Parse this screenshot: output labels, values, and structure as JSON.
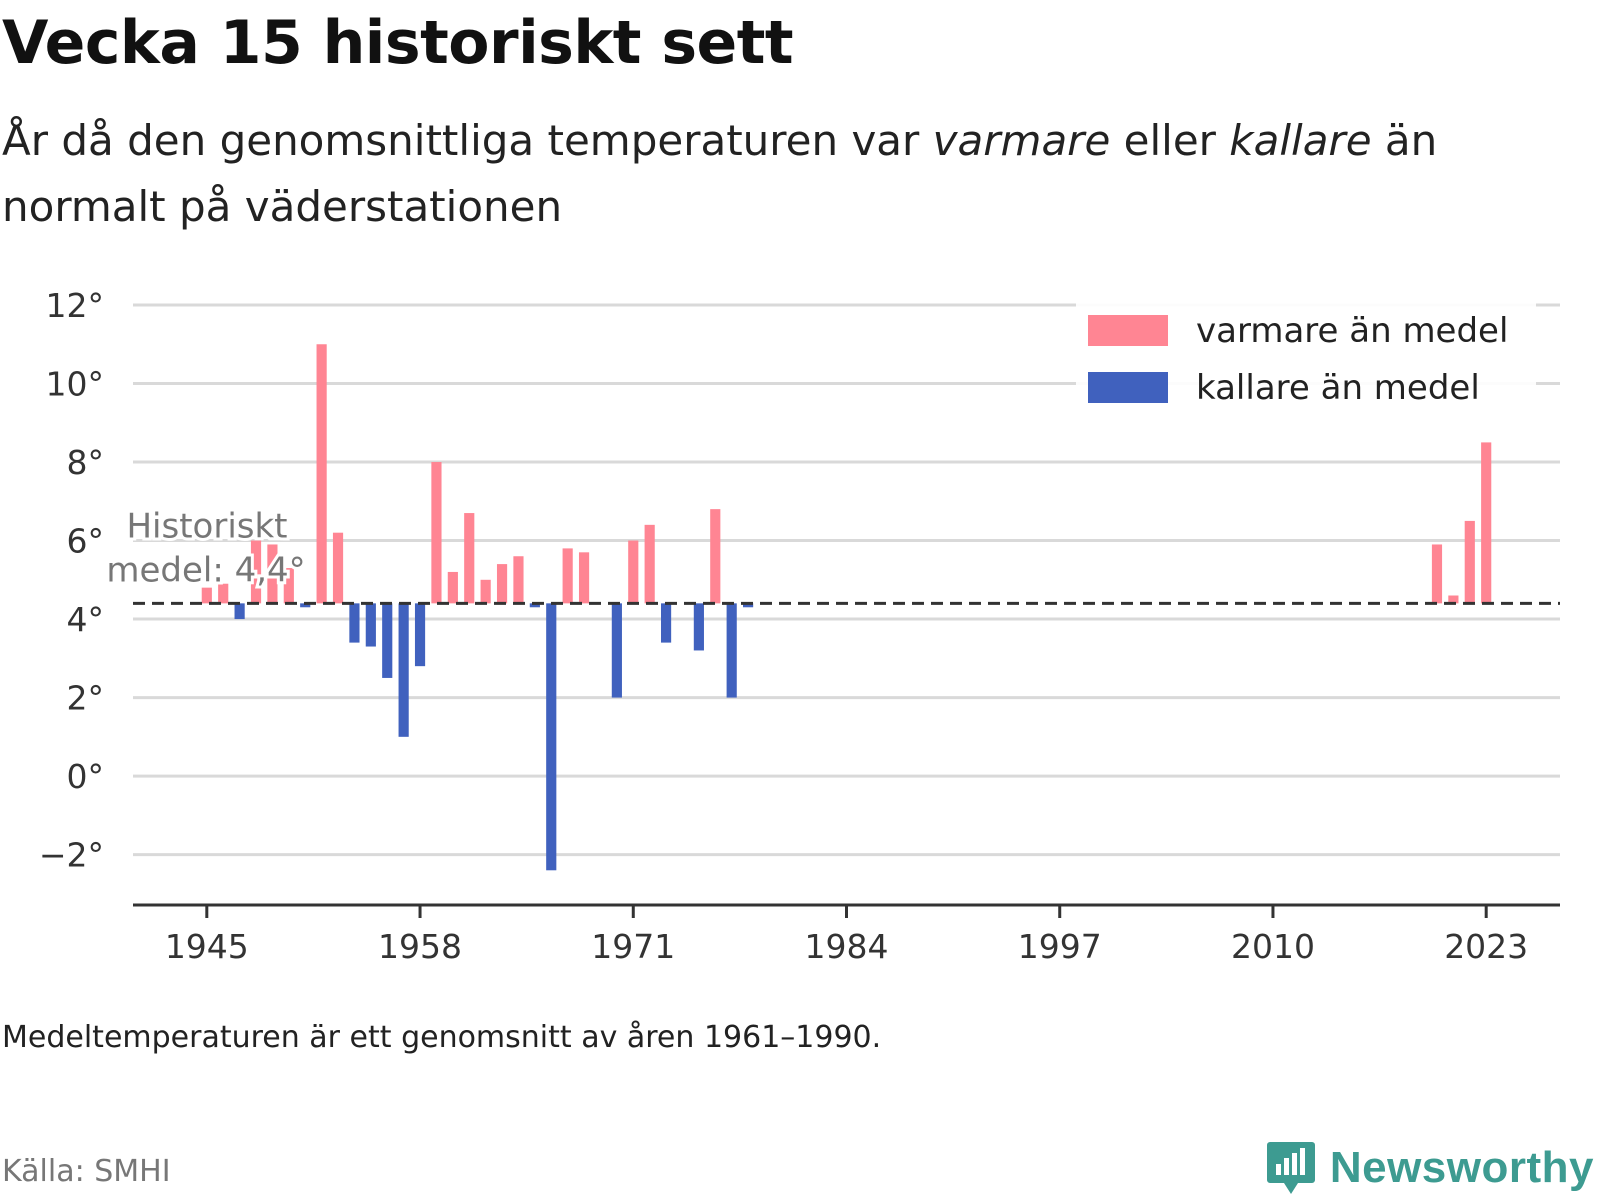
{
  "title": "Vecka 15 historiskt sett",
  "subtitle": {
    "part1": "År då den genomsnittliga temperaturen var ",
    "warm_word": "varmare",
    "part2": " eller ",
    "cold_word": "kallare",
    "part3": " än normalt på väderstationen"
  },
  "note": "Medeltemperaturen är ett genomsnitt av åren 1961–1990.",
  "source": "Källa: SMHI",
  "brand": {
    "name": "Newsworthy",
    "logo_icon": "newsworthy-logo-icon"
  },
  "colors": {
    "warm": "#ff8593",
    "cold": "#4061be",
    "brand": "#3d9b91",
    "grid": "#d9d9d9",
    "reference": "#333333"
  },
  "chart_data": {
    "type": "bar",
    "reference_value": 4.4,
    "reference_label_line1": "Historiskt",
    "reference_label_line2": "medel: 4,4°",
    "legend_placement": "top-right",
    "grid": true,
    "ylim": [
      -2.8,
      12
    ],
    "xlim": [
      1940.5,
      2027.5
    ],
    "y_ticks": [
      {
        "value": 12,
        "label": "12°"
      },
      {
        "value": 10,
        "label": "10°"
      },
      {
        "value": 8,
        "label": "8°"
      },
      {
        "value": 6,
        "label": "6°"
      },
      {
        "value": 4,
        "label": "4°"
      },
      {
        "value": 2,
        "label": "2°"
      },
      {
        "value": 0,
        "label": "0°"
      },
      {
        "value": -2,
        "label": "−2°"
      }
    ],
    "x_ticks": [
      {
        "value": 1945,
        "label": "1945"
      },
      {
        "value": 1958,
        "label": "1958"
      },
      {
        "value": 1971,
        "label": "1971"
      },
      {
        "value": 1984,
        "label": "1984"
      },
      {
        "value": 1997,
        "label": "1997"
      },
      {
        "value": 2010,
        "label": "2010"
      },
      {
        "value": 2023,
        "label": "2023"
      }
    ],
    "series": [
      {
        "name": "varmare än medel",
        "color": "#ff8593"
      },
      {
        "name": "kallare än medel",
        "color": "#4061be"
      }
    ],
    "data": [
      {
        "year": 1945,
        "value": 4.8
      },
      {
        "year": 1946,
        "value": 4.9
      },
      {
        "year": 1947,
        "value": 4.0
      },
      {
        "year": 1948,
        "value": 6.0
      },
      {
        "year": 1949,
        "value": 5.9
      },
      {
        "year": 1950,
        "value": 5.3
      },
      {
        "year": 1951,
        "value": 4.3
      },
      {
        "year": 1952,
        "value": 11.0
      },
      {
        "year": 1953,
        "value": 6.2
      },
      {
        "year": 1954,
        "value": 3.4
      },
      {
        "year": 1955,
        "value": 3.3
      },
      {
        "year": 1956,
        "value": 2.5
      },
      {
        "year": 1957,
        "value": 1.0
      },
      {
        "year": 1958,
        "value": 2.8
      },
      {
        "year": 1959,
        "value": 8.0
      },
      {
        "year": 1960,
        "value": 5.2
      },
      {
        "year": 1961,
        "value": 6.7
      },
      {
        "year": 1962,
        "value": 5.0
      },
      {
        "year": 1963,
        "value": 5.4
      },
      {
        "year": 1964,
        "value": 5.6
      },
      {
        "year": 1965,
        "value": 4.3
      },
      {
        "year": 1966,
        "value": -2.4
      },
      {
        "year": 1967,
        "value": 5.8
      },
      {
        "year": 1968,
        "value": 5.7
      },
      {
        "year": 1970,
        "value": 2.0
      },
      {
        "year": 1971,
        "value": 6.0
      },
      {
        "year": 1972,
        "value": 6.4
      },
      {
        "year": 1973,
        "value": 3.4
      },
      {
        "year": 1975,
        "value": 3.2
      },
      {
        "year": 1976,
        "value": 6.8
      },
      {
        "year": 1977,
        "value": 2.0
      },
      {
        "year": 1978,
        "value": 4.3
      },
      {
        "year": 2020,
        "value": 5.9
      },
      {
        "year": 2021,
        "value": 4.6
      },
      {
        "year": 2022,
        "value": 6.5
      },
      {
        "year": 2023,
        "value": 8.5
      }
    ]
  }
}
